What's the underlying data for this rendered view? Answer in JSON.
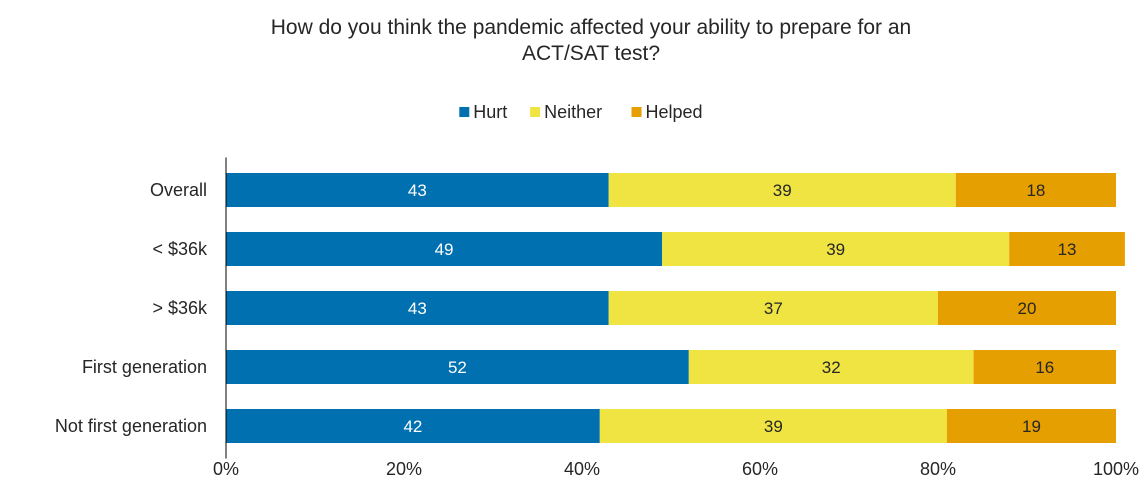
{
  "chart_data": {
    "type": "bar",
    "orientation": "horizontal",
    "stacked": true,
    "title_lines": [
      "How do you think the pandemic affected your ability to prepare for an",
      "ACT/SAT test?"
    ],
    "categories": [
      "Overall",
      "< $36k",
      "> $36k",
      "First generation",
      "Not first generation"
    ],
    "series": [
      {
        "name": "Hurt",
        "color": "#0070B0",
        "label_color": "#FFFFFF",
        "values": [
          43,
          49,
          43,
          52,
          42
        ]
      },
      {
        "name": "Neither",
        "color": "#F0E442",
        "label_color": "#262626",
        "values": [
          39,
          39,
          37,
          32,
          39
        ]
      },
      {
        "name": "Helped",
        "color": "#E69F00",
        "label_color": "#262626",
        "values": [
          18,
          13,
          20,
          16,
          19
        ]
      }
    ],
    "xlim": [
      0,
      100
    ],
    "x_ticks": [
      0,
      20,
      40,
      60,
      80,
      100
    ],
    "x_tick_labels": [
      "0%",
      "20%",
      "40%",
      "60%",
      "80%",
      "100%"
    ],
    "grid": false,
    "legend_position": "top-center"
  }
}
